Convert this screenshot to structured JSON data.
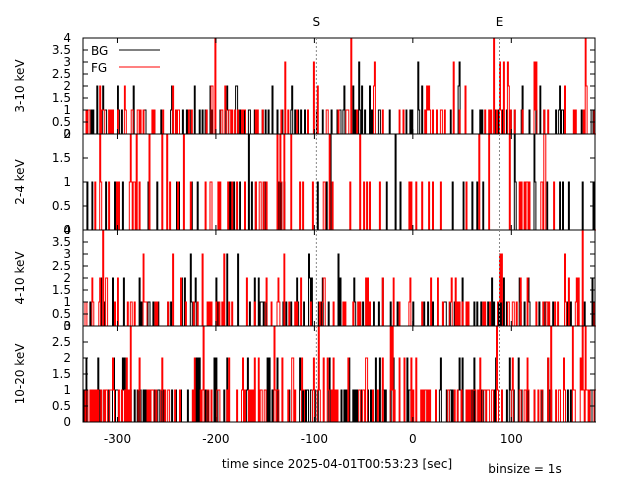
{
  "chart_data": {
    "type": "line",
    "style": "step histogram, 4 stacked panels sharing the time axis",
    "xlabel": "time since 2025-04-01T00:53:23 [sec]",
    "binsize_label": "binsize = 1s",
    "xlim": [
      -335,
      185
    ],
    "xticks": [
      -300,
      -200,
      -100,
      0,
      100
    ],
    "xtick_labels": [
      "-300",
      "-200",
      "-100",
      "0",
      "100"
    ],
    "markers": [
      {
        "label": "S",
        "x": -98
      },
      {
        "label": "E",
        "x": 88
      }
    ],
    "legend": {
      "position": "top-left",
      "entries": [
        "BG",
        "FG"
      ]
    },
    "series_colors": {
      "BG": "#000000",
      "FG": "#ff0000"
    },
    "grid": false,
    "panels": [
      {
        "ylabel": "3-10 keV",
        "ylim": [
          0,
          4
        ],
        "yticks": [
          0.5,
          1,
          1.5,
          2,
          2.5,
          3,
          3.5,
          4
        ],
        "ytick_labels": [
          "0.5",
          "1",
          "1.5",
          "2",
          "2.5",
          "3",
          "3.5",
          "4"
        ],
        "bottom_label": "0",
        "seed": 11,
        "pmax": 0.22,
        "dist": [
          0.72,
          0.2,
          0.06,
          0.02
        ],
        "extremes": [
          [
            88,
            3
          ],
          [
            92,
            3
          ],
          [
            125,
            3
          ]
        ]
      },
      {
        "ylabel": "2-4 keV",
        "ylim": [
          0,
          2
        ],
        "yticks": [
          0.5,
          1,
          1.5
        ],
        "ytick_labels": [
          "0.5",
          "1",
          "1.5"
        ],
        "top_label": "2",
        "bottom_label": "0",
        "seed": 23,
        "pmax": 0.1,
        "dist": [
          0.85,
          0.15
        ],
        "extremes": [
          [
            -318,
            2
          ],
          [
            -287,
            2
          ]
        ]
      },
      {
        "ylabel": "4-10 keV",
        "ylim": [
          0,
          4
        ],
        "yticks": [
          0.5,
          1,
          1.5,
          2,
          2.5,
          3,
          3.5
        ],
        "ytick_labels": [
          "0.5",
          "1",
          "1.5",
          "2",
          "2.5",
          "3",
          "3.5"
        ],
        "top_label": "4",
        "bottom_label": "0",
        "seed": 37,
        "pmax": 0.2,
        "dist": [
          0.75,
          0.18,
          0.05,
          0.02
        ],
        "extremes": [
          [
            88,
            3
          ],
          [
            90,
            3
          ]
        ]
      },
      {
        "ylabel": "10-20 keV",
        "ylim": [
          0,
          3
        ],
        "yticks": [
          0,
          0.5,
          1,
          1.5,
          2,
          2.5
        ],
        "ytick_labels": [
          "0",
          "0.5",
          "1",
          "1.5",
          "2",
          "2.5"
        ],
        "top_label": "3",
        "seed": 53,
        "pmax": 0.3,
        "dist": [
          0.75,
          0.2,
          0.05
        ],
        "extremes": [
          [
            -96,
            3
          ],
          [
            140,
            3
          ]
        ]
      }
    ]
  }
}
